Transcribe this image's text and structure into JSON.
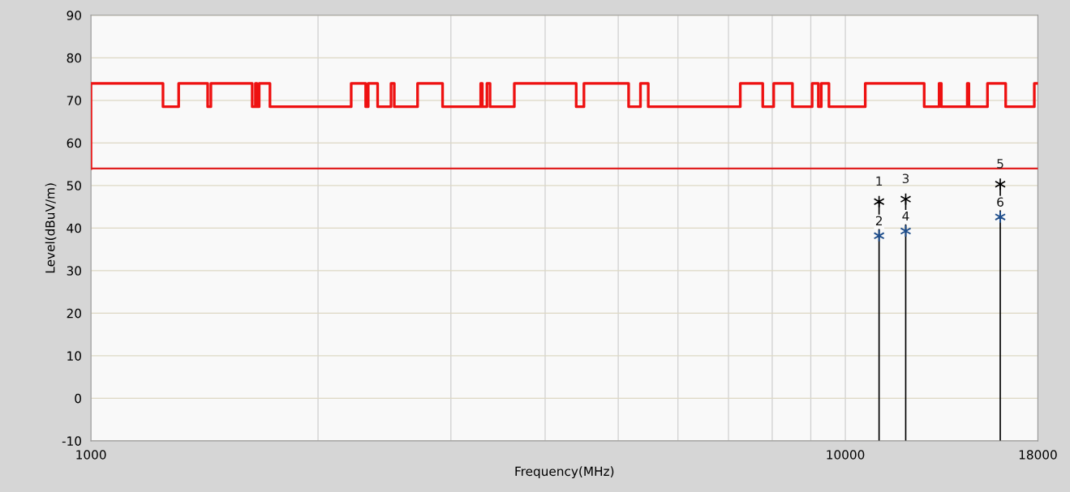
{
  "chart_data": {
    "type": "line",
    "xlabel": "Frequency(MHz)",
    "ylabel": "Level(dBuV/m)",
    "log": "x",
    "xlim": [
      1000,
      18000
    ],
    "xticks": [
      1000,
      {
        "value": 2000,
        "label": null
      },
      {
        "value": 3000,
        "label": null
      },
      {
        "value": 4000,
        "label": null
      },
      {
        "value": 5000,
        "label": null
      },
      {
        "value": 6000,
        "label": null
      },
      {
        "value": 7000,
        "label": null
      },
      {
        "value": 8000,
        "label": null
      },
      {
        "value": 9000,
        "label": null
      },
      10000,
      18000
    ],
    "ylim": [
      -10,
      90
    ],
    "yticks": [
      -10,
      0,
      10,
      20,
      30,
      40,
      50,
      60,
      70,
      80,
      90
    ],
    "grid": true,
    "legend": false,
    "series": [
      {
        "type": "step",
        "color": "#ee1111",
        "x": [
          1000,
          1000,
          1246,
          1307,
          1428,
          1442,
          1636,
          1652,
          1660,
          1671,
          1727,
          2213,
          2313,
          2331,
          2399,
          2499,
          2524,
          2710,
          2925,
          3286,
          3302,
          3349,
          3381,
          3641,
          4398,
          4503,
          5161,
          5351,
          5480,
          7257,
          7772,
          8036,
          8510,
          9037,
          9211,
          9292,
          9512,
          10627,
          12722,
          13314,
          13405,
          14510,
          14581,
          15432,
          16314,
          17805,
          18000
        ],
        "values": [
          54,
          74,
          68.5,
          74,
          68.5,
          74,
          68.5,
          74,
          68.5,
          74,
          68.5,
          74,
          68.5,
          74,
          68.5,
          74,
          68.5,
          74,
          68.5,
          74,
          68.5,
          74,
          68.5,
          74,
          68.5,
          74,
          68.5,
          74,
          68.5,
          74,
          68.5,
          74,
          68.5,
          74,
          68.5,
          74,
          68.5,
          74,
          68.5,
          74,
          68.5,
          74,
          68.5,
          74,
          68.5,
          74,
          74
        ]
      },
      {
        "color": "#e02020",
        "x": [
          1000,
          18000
        ],
        "values": [
          54,
          54
        ]
      },
      {
        "type": "lollipop",
        "marker": "cross",
        "color": "#000000",
        "x": [
          11085,
          12024,
          16046
        ],
        "values": [
          46.2,
          46.8,
          50.3
        ]
      },
      {
        "type": "scatter",
        "marker": "cross",
        "color": "#1f4e8c",
        "x": [
          11085,
          12024,
          16046
        ],
        "values": [
          38.2,
          39.3,
          42.6
        ]
      }
    ],
    "annotations": [
      {
        "text": "1",
        "x": 11085,
        "y": 46.2
      },
      {
        "text": "2",
        "x": 11085,
        "y": 38.2
      },
      {
        "text": "3",
        "x": 12024,
        "y": 46.8
      },
      {
        "text": "4",
        "x": 12024,
        "y": 39.3
      },
      {
        "text": "5",
        "x": 16046,
        "y": 50.3
      },
      {
        "text": "6",
        "x": 16046,
        "y": 42.6
      }
    ]
  }
}
